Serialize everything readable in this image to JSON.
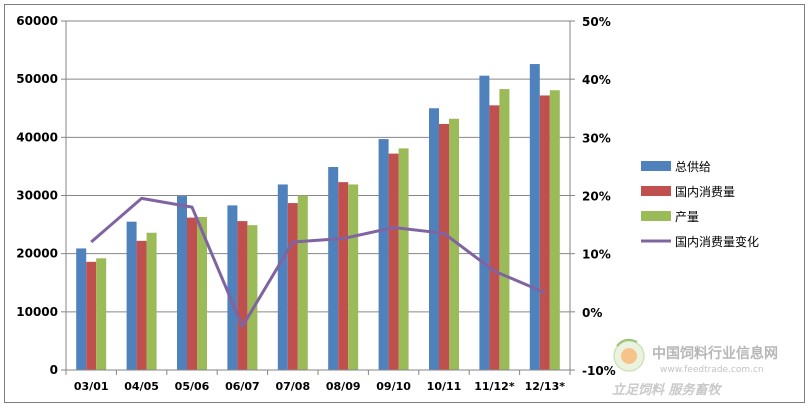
{
  "chart_data": {
    "type": "bar",
    "categories": [
      "03/01",
      "04/05",
      "05/06",
      "06/07",
      "07/08",
      "08/09",
      "09/10",
      "10/11",
      "11/12*",
      "12/13*"
    ],
    "series": [
      {
        "name": "总供给",
        "type": "bar",
        "axis": "left",
        "color": "#4f81bd",
        "values": [
          20900,
          25500,
          29900,
          28300,
          31900,
          34900,
          39700,
          45000,
          50600,
          52600
        ]
      },
      {
        "name": "国内消费量",
        "type": "bar",
        "axis": "left",
        "color": "#c0504d",
        "values": [
          18600,
          22200,
          26200,
          25600,
          28700,
          32300,
          37200,
          42300,
          45500,
          47200
        ]
      },
      {
        "name": "产量",
        "type": "bar",
        "axis": "left",
        "color": "#9bbb59",
        "values": [
          19200,
          23600,
          26300,
          24900,
          30000,
          31900,
          38100,
          43200,
          48300,
          48100
        ]
      },
      {
        "name": "国内消费量变化",
        "type": "line",
        "axis": "right",
        "color": "#8064a2",
        "values": [
          12.0,
          19.5,
          18.0,
          -2.5,
          12.0,
          12.6,
          14.5,
          13.5,
          7.0,
          3.3
        ]
      }
    ],
    "y_left": {
      "min": 0,
      "max": 60000,
      "step": 10000,
      "tick_labels": [
        "0",
        "10000",
        "20000",
        "30000",
        "40000",
        "50000",
        "60000"
      ]
    },
    "y_right": {
      "min": -10,
      "max": 50,
      "step": 10,
      "tick_labels": [
        "-10%",
        "0%",
        "10%",
        "20%",
        "30%",
        "40%",
        "50%"
      ]
    },
    "grid": true,
    "legend_position": "right"
  },
  "watermark": {
    "site_name": "中国饲料行业信息网",
    "url": "www.feedtrade.com.cn",
    "slogan": "立足饲料  服务畜牧"
  }
}
